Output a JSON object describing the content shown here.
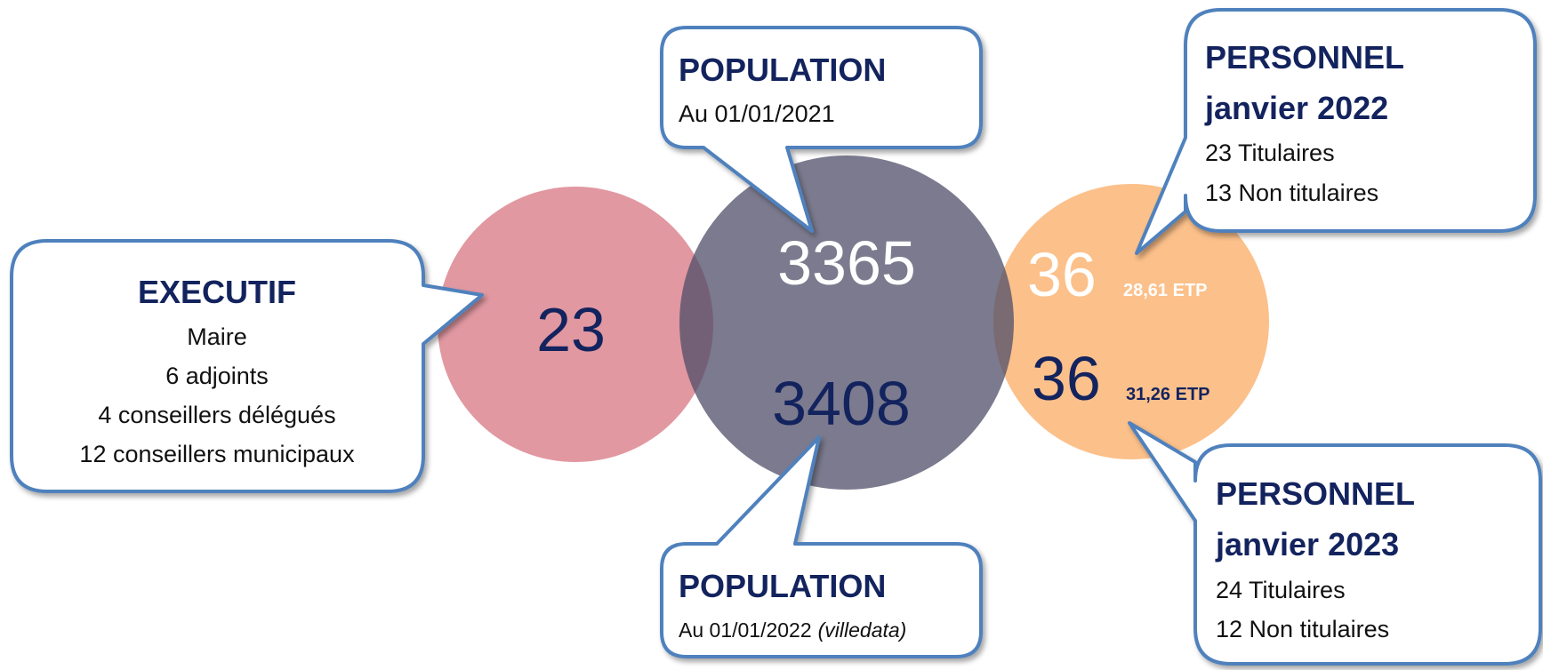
{
  "executif": {
    "value": 23,
    "title": "EXECUTIF",
    "lines": [
      "Maire",
      "6 adjoints",
      "4 conseillers délégués",
      "12 conseillers municipaux"
    ]
  },
  "population": [
    {
      "value": 3365,
      "title": "POPULATION",
      "date": "Au 01/01/2021"
    },
    {
      "value": 3408,
      "title": "POPULATION",
      "date": "Au 01/01/2022",
      "source": "(villedata)"
    }
  ],
  "personnel": [
    {
      "total": 36,
      "etp": "28,61 ETP",
      "title": "PERSONNEL",
      "period": "janvier 2022",
      "lines": [
        "23 Titulaires",
        "13 Non titulaires"
      ]
    },
    {
      "total": 36,
      "etp": "31,26 ETP",
      "title": "PERSONNEL",
      "period": "janvier 2023",
      "lines": [
        "24 Titulaires",
        "12 Non titulaires"
      ]
    }
  ]
}
